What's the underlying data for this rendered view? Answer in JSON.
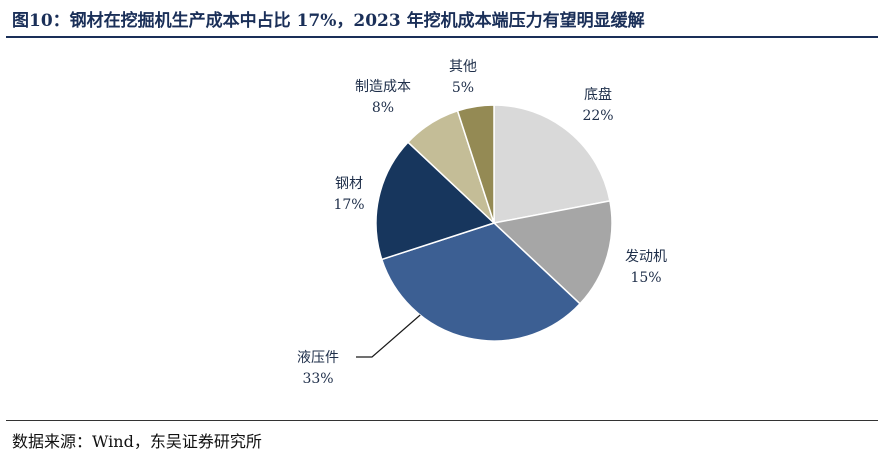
{
  "title": "图10：钢材在挖掘机生产成本中占比 17%，2023 年挖机成本端压力有望明显缓解",
  "source": "数据来源：Wind，东吴证券研究所",
  "chart_data": {
    "type": "pie",
    "title": "图10：钢材在挖掘机生产成本中占比 17%，2023 年挖机成本端压力有望明显缓解",
    "start_angle_deg": 0,
    "direction": "clockwise",
    "slices": [
      {
        "label": "底盘",
        "value": 22,
        "value_label": "22%",
        "color": "#d9d9d9"
      },
      {
        "label": "发动机",
        "value": 15,
        "value_label": "15%",
        "color": "#a6a6a6"
      },
      {
        "label": "液压件",
        "value": 33,
        "value_label": "33%",
        "color": "#3c5f93"
      },
      {
        "label": "钢材",
        "value": 17,
        "value_label": "17%",
        "color": "#17365d"
      },
      {
        "label": "制造成本",
        "value": 8,
        "value_label": "8%",
        "color": "#c4bd97"
      },
      {
        "label": "其他",
        "value": 5,
        "value_label": "5%",
        "color": "#948a54"
      }
    ]
  }
}
